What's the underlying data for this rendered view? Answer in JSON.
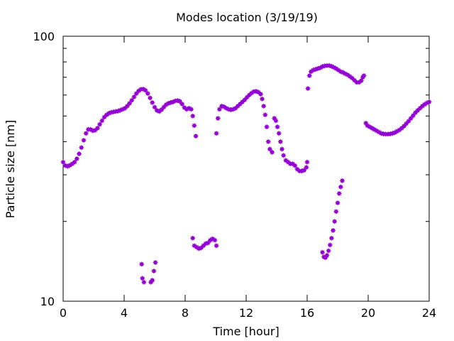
{
  "chart_data": {
    "type": "scatter",
    "title": "Modes location (3/19/19)",
    "xlabel": "Time [hour]",
    "ylabel": "Particle size [nm]",
    "xlim": [
      0,
      24
    ],
    "ylim": [
      10,
      100
    ],
    "yscale": "log",
    "grid": false,
    "legend": "none",
    "x_ticks": [
      {
        "value": 0,
        "label": "0"
      },
      {
        "value": 4,
        "label": "4"
      },
      {
        "value": 8,
        "label": "8"
      },
      {
        "value": 12,
        "label": "12"
      },
      {
        "value": 16,
        "label": "16"
      },
      {
        "value": 20,
        "label": "20"
      },
      {
        "value": 24,
        "label": "24"
      }
    ],
    "y_ticks": [
      {
        "value": 10,
        "label": "10"
      },
      {
        "value": 100,
        "label": "100"
      }
    ],
    "marker_color": "#9400d3",
    "series": [
      {
        "points": [
          [
            0.0,
            33.5
          ],
          [
            0.15,
            32.5
          ],
          [
            0.3,
            32.3
          ],
          [
            0.45,
            32.6
          ],
          [
            0.6,
            33.0
          ],
          [
            0.75,
            33.5
          ],
          [
            0.9,
            34.5
          ],
          [
            1.05,
            36.0
          ],
          [
            1.2,
            38.0
          ],
          [
            1.35,
            40.5
          ],
          [
            1.5,
            43.0
          ],
          [
            1.65,
            44.5
          ],
          [
            1.8,
            44.5
          ],
          [
            1.95,
            44.0
          ],
          [
            2.1,
            44.2
          ],
          [
            2.25,
            45.0
          ],
          [
            2.4,
            46.5
          ],
          [
            2.55,
            48.0
          ],
          [
            2.7,
            49.5
          ],
          [
            2.85,
            50.5
          ],
          [
            3.0,
            51.2
          ],
          [
            3.15,
            51.6
          ],
          [
            3.3,
            51.8
          ],
          [
            3.45,
            52.0
          ],
          [
            3.6,
            52.2
          ],
          [
            3.75,
            52.6
          ],
          [
            3.9,
            53.0
          ],
          [
            4.05,
            53.5
          ],
          [
            4.2,
            54.5
          ],
          [
            4.35,
            55.8
          ],
          [
            4.5,
            57.3
          ],
          [
            4.65,
            59.0
          ],
          [
            4.8,
            60.8
          ],
          [
            4.95,
            62.2
          ],
          [
            5.1,
            63.0
          ],
          [
            5.25,
            63.2
          ],
          [
            5.4,
            62.5
          ],
          [
            5.55,
            60.8
          ],
          [
            5.7,
            58.5
          ],
          [
            5.85,
            56.2
          ],
          [
            6.0,
            54.0
          ],
          [
            6.15,
            52.5
          ],
          [
            6.3,
            52.0
          ],
          [
            6.45,
            52.8
          ],
          [
            6.6,
            54.0
          ],
          [
            6.75,
            55.2
          ],
          [
            6.9,
            55.8
          ],
          [
            7.05,
            56.2
          ],
          [
            7.2,
            56.5
          ],
          [
            7.35,
            57.0
          ],
          [
            7.5,
            57.2
          ],
          [
            7.65,
            56.8
          ],
          [
            7.8,
            55.5
          ],
          [
            7.95,
            53.8
          ],
          [
            8.1,
            53.0
          ],
          [
            8.25,
            53.5
          ],
          [
            8.4,
            53.0
          ],
          [
            8.5,
            50.0
          ],
          [
            8.6,
            46.0
          ],
          [
            8.7,
            42.0
          ],
          [
            10.05,
            43.0
          ],
          [
            10.15,
            49.0
          ],
          [
            10.25,
            53.0
          ],
          [
            10.4,
            54.5
          ],
          [
            10.55,
            54.2
          ],
          [
            10.7,
            53.5
          ],
          [
            10.85,
            53.0
          ],
          [
            11.0,
            52.8
          ],
          [
            11.15,
            53.0
          ],
          [
            11.3,
            53.5
          ],
          [
            11.45,
            54.5
          ],
          [
            11.6,
            55.5
          ],
          [
            11.75,
            56.5
          ],
          [
            11.9,
            57.5
          ],
          [
            12.05,
            58.8
          ],
          [
            12.2,
            60.0
          ],
          [
            12.35,
            61.0
          ],
          [
            12.5,
            61.8
          ],
          [
            12.65,
            62.0
          ],
          [
            12.8,
            61.5
          ],
          [
            12.95,
            60.5
          ],
          [
            13.05,
            58.0
          ],
          [
            13.15,
            54.5
          ],
          [
            13.25,
            50.5
          ],
          [
            13.35,
            45.5
          ],
          [
            13.45,
            40.0
          ],
          [
            13.55,
            37.5
          ],
          [
            13.7,
            36.5
          ],
          [
            13.85,
            49.0
          ],
          [
            13.95,
            48.0
          ],
          [
            14.05,
            45.5
          ],
          [
            14.15,
            43.0
          ],
          [
            14.25,
            40.0
          ],
          [
            14.35,
            37.5
          ],
          [
            14.45,
            35.5
          ],
          [
            14.6,
            34.0
          ],
          [
            14.75,
            33.5
          ],
          [
            14.9,
            33.0
          ],
          [
            15.05,
            33.0
          ],
          [
            15.2,
            32.5
          ],
          [
            15.35,
            31.5
          ],
          [
            15.5,
            31.0
          ],
          [
            15.65,
            31.0
          ],
          [
            15.8,
            31.2
          ],
          [
            15.95,
            32.0
          ],
          [
            16.0,
            33.5
          ],
          [
            16.05,
            63.5
          ],
          [
            16.15,
            71.0
          ],
          [
            16.25,
            73.5
          ],
          [
            16.4,
            74.5
          ],
          [
            16.55,
            75.0
          ],
          [
            16.7,
            75.5
          ],
          [
            16.85,
            76.0
          ],
          [
            17.0,
            76.8
          ],
          [
            17.15,
            77.3
          ],
          [
            17.3,
            77.5
          ],
          [
            17.45,
            77.5
          ],
          [
            17.6,
            77.0
          ],
          [
            17.75,
            76.3
          ],
          [
            17.9,
            75.5
          ],
          [
            18.05,
            74.5
          ],
          [
            18.2,
            73.5
          ],
          [
            18.35,
            73.0
          ],
          [
            18.5,
            72.2
          ],
          [
            18.65,
            71.5
          ],
          [
            18.8,
            70.5
          ],
          [
            18.95,
            69.5
          ],
          [
            19.1,
            68.2
          ],
          [
            19.25,
            67.0
          ],
          [
            19.4,
            67.0
          ],
          [
            19.55,
            68.0
          ],
          [
            19.65,
            70.0
          ],
          [
            19.72,
            71.0
          ],
          [
            19.85,
            47.0
          ],
          [
            19.95,
            46.0
          ],
          [
            20.1,
            45.5
          ],
          [
            20.25,
            45.0
          ],
          [
            20.4,
            44.5
          ],
          [
            20.55,
            44.0
          ],
          [
            20.7,
            43.5
          ],
          [
            20.85,
            43.0
          ],
          [
            21.0,
            42.8
          ],
          [
            21.15,
            42.7
          ],
          [
            21.3,
            42.7
          ],
          [
            21.45,
            42.8
          ],
          [
            21.6,
            43.0
          ],
          [
            21.75,
            43.3
          ],
          [
            21.9,
            43.8
          ],
          [
            22.05,
            44.3
          ],
          [
            22.2,
            45.0
          ],
          [
            22.35,
            45.8
          ],
          [
            22.5,
            46.8
          ],
          [
            22.65,
            47.8
          ],
          [
            22.8,
            49.0
          ],
          [
            22.95,
            50.2
          ],
          [
            23.1,
            51.5
          ],
          [
            23.25,
            52.5
          ],
          [
            23.4,
            53.5
          ],
          [
            23.55,
            54.5
          ],
          [
            23.7,
            55.3
          ],
          [
            23.85,
            56.0
          ],
          [
            24.0,
            56.5
          ]
        ]
      },
      {
        "points": [
          [
            5.15,
            13.8
          ],
          [
            5.2,
            12.2
          ],
          [
            5.3,
            11.8
          ],
          [
            5.75,
            11.8
          ],
          [
            5.85,
            12.0
          ],
          [
            5.95,
            13.0
          ],
          [
            6.05,
            14.0
          ],
          [
            8.5,
            17.3
          ],
          [
            8.6,
            16.2
          ],
          [
            8.75,
            16.0
          ],
          [
            8.9,
            15.8
          ],
          [
            9.05,
            15.9
          ],
          [
            9.2,
            16.2
          ],
          [
            9.35,
            16.5
          ],
          [
            9.5,
            16.6
          ],
          [
            9.65,
            17.0
          ],
          [
            9.8,
            17.2
          ],
          [
            9.95,
            17.0
          ],
          [
            10.05,
            16.2
          ],
          [
            17.0,
            15.3
          ],
          [
            17.1,
            14.7
          ],
          [
            17.2,
            14.6
          ],
          [
            17.3,
            14.9
          ],
          [
            17.4,
            15.5
          ],
          [
            17.5,
            16.3
          ],
          [
            17.6,
            17.3
          ],
          [
            17.7,
            18.5
          ],
          [
            17.8,
            20.0
          ],
          [
            17.9,
            21.8
          ],
          [
            18.0,
            23.5
          ],
          [
            18.1,
            25.5
          ],
          [
            18.2,
            27.0
          ],
          [
            18.3,
            28.5
          ]
        ]
      }
    ]
  }
}
